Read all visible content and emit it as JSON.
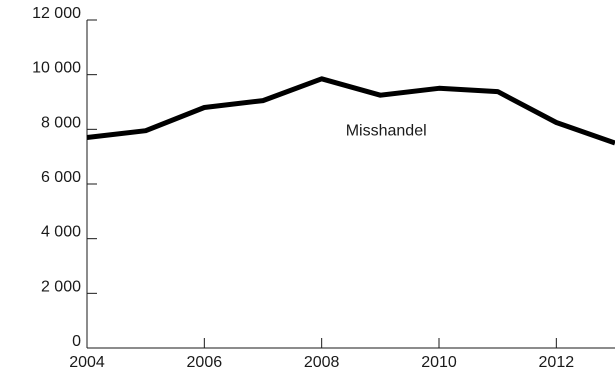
{
  "chart_data": {
    "type": "line",
    "title": "",
    "xlabel": "",
    "ylabel": "",
    "xlim": [
      2004,
      2013
    ],
    "ylim": [
      0,
      12000
    ],
    "x_ticks": [
      2004,
      2006,
      2008,
      2010,
      2012
    ],
    "x_tick_labels": [
      "2004",
      "2006",
      "2008",
      "2010",
      "2012"
    ],
    "y_ticks": [
      0,
      2000,
      4000,
      6000,
      8000,
      10000,
      12000
    ],
    "y_tick_labels": [
      "0",
      "2 000",
      "4 000",
      "6 000",
      "8 000",
      "10 000",
      "12 000"
    ],
    "grid": false,
    "legend": "none",
    "series": [
      {
        "name": "Misshandel",
        "color": "#000000",
        "x": [
          2004,
          2005,
          2006,
          2007,
          2008,
          2009,
          2010,
          2011,
          2012,
          2013
        ],
        "values": [
          7700,
          7950,
          8800,
          9050,
          9850,
          9250,
          9500,
          9380,
          8250,
          7500
        ]
      }
    ],
    "annotations": [
      {
        "text": "Misshandel",
        "x": 2009.1,
        "y": 8000
      }
    ]
  }
}
